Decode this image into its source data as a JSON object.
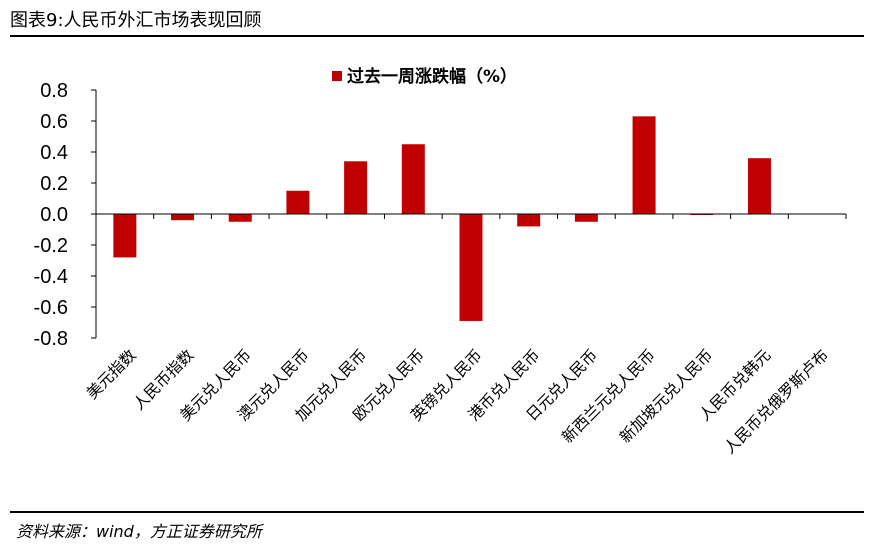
{
  "figure": {
    "title": "图表9:人民币外汇市场表现回顾",
    "source": "资料来源：wind，方正证券研究所"
  },
  "chart_data": {
    "type": "bar",
    "title": "",
    "xlabel": "",
    "ylabel": "",
    "legend_position": "top-center",
    "ylim": [
      -0.8,
      0.8
    ],
    "yticks": [
      0.8,
      0.6,
      0.4,
      0.2,
      0.0,
      -0.2,
      -0.4,
      -0.6,
      -0.8
    ],
    "ytick_labels": [
      "0.8",
      "0.6",
      "0.4",
      "0.2",
      "0.0",
      "-0.2",
      "-0.4",
      "-0.6",
      "-0.8"
    ],
    "categories": [
      "美元指数",
      "人民币指数",
      "美元兑人民币",
      "澳元兑人民币",
      "加元兑人民币",
      "欧元兑人民币",
      "英镑兑人民币",
      "港币兑人民币",
      "日元兑人民币",
      "新西兰元兑人民币",
      "新加坡元兑人民币",
      "人民币兑韩元",
      "人民币兑俄罗斯卢布"
    ],
    "series": [
      {
        "name": "过去一周涨跌幅（%）",
        "color": "#C00000",
        "values": [
          -0.28,
          -0.04,
          -0.05,
          0.15,
          0.34,
          0.45,
          -0.69,
          -0.08,
          -0.05,
          0.63,
          -0.005,
          0.36,
          0.0
        ]
      }
    ]
  }
}
